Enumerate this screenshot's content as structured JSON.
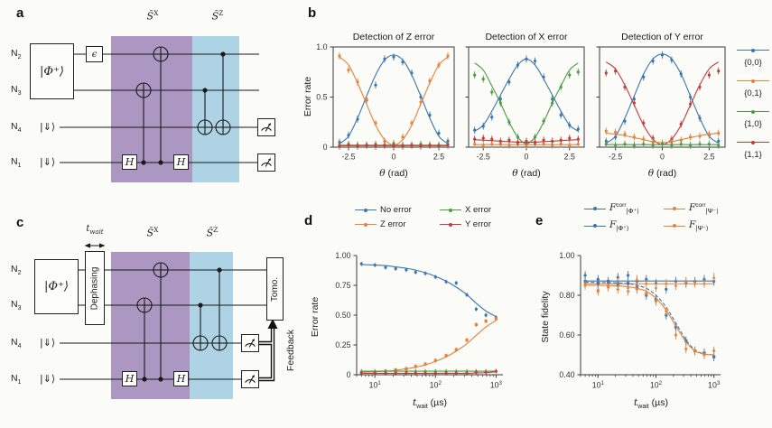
{
  "colors": {
    "blue": "#3d76ae",
    "orange": "#e5823e",
    "green": "#4f9a48",
    "red": "#c13c3c",
    "purple_shade": "#ab97c2",
    "blue_shade": "#aed3e4",
    "ink": "#222222"
  },
  "panels": {
    "a": "a",
    "b": "b",
    "c": "c",
    "d": "d",
    "e": "e"
  },
  "circuit_a": {
    "qubits": [
      {
        "base": "N",
        "sub": "2"
      },
      {
        "base": "N",
        "sub": "3"
      },
      {
        "base": "N",
        "sub": "4"
      },
      {
        "base": "N",
        "sub": "1"
      }
    ],
    "prep": "|Φ⁺⟩",
    "noise": "ϵ",
    "hadamard1": "H",
    "hadamard2": "H",
    "ket_down1": "|⇓⟩",
    "ket_down2": "|⇓⟩",
    "stab_x": {
      "base": "Ŝ",
      "sup": "X"
    },
    "stab_z": {
      "base": "Ŝ",
      "sup": "Z"
    }
  },
  "circuit_c": {
    "qubits": [
      {
        "base": "N",
        "sub": "2"
      },
      {
        "base": "N",
        "sub": "3"
      },
      {
        "base": "N",
        "sub": "4"
      },
      {
        "base": "N",
        "sub": "1"
      }
    ],
    "prep": "|Φ⁺⟩",
    "hadamard1": "H",
    "hadamard2": "H",
    "ket_down1": "|⇓⟩",
    "ket_down2": "|⇓⟩",
    "stab_x": {
      "base": "Ŝ",
      "sup": "X"
    },
    "stab_z": {
      "base": "Ŝ",
      "sup": "Z"
    },
    "wait": {
      "base": "t",
      "sub": "wait"
    },
    "dephasing": "Dephasing",
    "tomo": "Tomo.",
    "feedback": "Feedback"
  },
  "panel_b": {
    "ylabel": "Error rate",
    "xlabel_sym": "θ",
    "xlabel_rest": " (rad)"
  },
  "panel_d": {
    "ylabel": "Error rate",
    "xlabel_base": "t",
    "xlabel_sub": "wait",
    "xlabel_unit": " (µs)"
  },
  "panel_e": {
    "ylabel": "State fidelity",
    "xlabel_base": "t",
    "xlabel_sub": "wait",
    "xlabel_unit": " (µs)"
  },
  "chart_data": [
    {
      "id": "b1",
      "type": "line",
      "title": "Detection of Z error",
      "xlabel": "θ (rad)",
      "ylabel": "Error rate",
      "frame": "box",
      "xlog": false,
      "xlim": [
        -3.35,
        3.35
      ],
      "ylim": [
        0,
        1.0
      ],
      "xticks": [
        -2.5,
        0,
        2.5
      ],
      "xtick_labels": [
        "-2.5",
        "0",
        "2.5"
      ],
      "yticks": [
        0,
        0.5,
        1.0
      ],
      "ytick_labels": [
        "0",
        "0.5",
        "1.0"
      ],
      "show_ytick_labels": true,
      "err": 0.035,
      "x": [
        -3,
        -2.5,
        -2,
        -1.5,
        -1,
        -0.5,
        0,
        0.5,
        1,
        1.5,
        2,
        2.5,
        3
      ],
      "series": [
        {
          "name": "{0,0}",
          "color": "blue",
          "marker": "circle",
          "values": [
            0.05,
            0.12,
            0.28,
            0.47,
            0.62,
            0.88,
            0.9,
            0.85,
            0.74,
            0.5,
            0.32,
            0.14,
            0.06
          ],
          "line_values": [
            0.034,
            0.11,
            0.29,
            0.51,
            0.72,
            0.87,
            0.92,
            0.87,
            0.72,
            0.51,
            0.29,
            0.11,
            0.034
          ]
        },
        {
          "name": "{0,1}",
          "color": "orange",
          "marker": "circle",
          "values": [
            0.91,
            0.77,
            0.65,
            0.48,
            0.24,
            0.06,
            0.04,
            0.1,
            0.24,
            0.45,
            0.66,
            0.82,
            0.91
          ],
          "line_values": [
            0.9,
            0.82,
            0.64,
            0.43,
            0.22,
            0.075,
            0.02,
            0.075,
            0.22,
            0.43,
            0.64,
            0.82,
            0.9
          ]
        },
        {
          "name": "{1,0}",
          "color": "green",
          "marker": "circle",
          "values": [
            0.02,
            0.03,
            0.02,
            0.02,
            0.03,
            0.02,
            0.03,
            0.02,
            0.02,
            0.03,
            0.02,
            0.02,
            0.03
          ],
          "line_values": [
            0.02,
            0.02,
            0.02,
            0.02,
            0.02,
            0.02,
            0.02,
            0.02,
            0.02,
            0.02,
            0.02,
            0.02,
            0.02
          ]
        },
        {
          "name": "{1,1}",
          "color": "red",
          "marker": "circle",
          "values": [
            0.01,
            0.02,
            0.01,
            0.02,
            0.01,
            0.02,
            0.01,
            0.01,
            0.02,
            0.01,
            0.02,
            0.01,
            0.02
          ],
          "line_values": [
            0.015,
            0.015,
            0.015,
            0.015,
            0.015,
            0.015,
            0.015,
            0.015,
            0.015,
            0.015,
            0.015,
            0.015,
            0.015
          ]
        }
      ]
    },
    {
      "id": "b2",
      "type": "line",
      "title": "Detection of X error",
      "xlabel": "θ (rad)",
      "frame": "box",
      "xlog": false,
      "xlim": [
        -3.35,
        3.35
      ],
      "ylim": [
        0,
        1.0
      ],
      "xticks": [
        -2.5,
        0,
        2.5
      ],
      "xtick_labels": [
        "-2.5",
        "0",
        "2.5"
      ],
      "yticks": [
        0,
        0.5,
        1.0
      ],
      "ytick_labels": [
        "0",
        "0.5",
        "1.0"
      ],
      "show_ytick_labels": false,
      "err": 0.035,
      "x": [
        -3,
        -2.5,
        -2,
        -1.5,
        -1,
        -0.5,
        0,
        0.5,
        1,
        1.5,
        2,
        2.5,
        3
      ],
      "series": [
        {
          "name": "{0,0}",
          "color": "blue",
          "marker": "circle",
          "values": [
            0.17,
            0.21,
            0.3,
            0.48,
            0.65,
            0.82,
            0.88,
            0.86,
            0.7,
            0.48,
            0.32,
            0.22,
            0.18
          ],
          "line_values": [
            0.16,
            0.22,
            0.36,
            0.52,
            0.68,
            0.82,
            0.88,
            0.82,
            0.68,
            0.52,
            0.36,
            0.22,
            0.16
          ]
        },
        {
          "name": "{1,0}",
          "color": "green",
          "marker": "circle",
          "values": [
            0.72,
            0.68,
            0.55,
            0.44,
            0.25,
            0.1,
            0.04,
            0.1,
            0.26,
            0.44,
            0.6,
            0.72,
            0.75
          ],
          "line_values": [
            0.84,
            0.77,
            0.61,
            0.44,
            0.25,
            0.1,
            0.035,
            0.1,
            0.25,
            0.44,
            0.61,
            0.77,
            0.84
          ]
        },
        {
          "name": "{0,1}",
          "color": "orange",
          "marker": "circle",
          "values": [
            0.03,
            0.02,
            0.03,
            0.03,
            0.02,
            0.03,
            0.02,
            0.03,
            0.03,
            0.02,
            0.03,
            0.02,
            0.03
          ],
          "line_values": [
            0.025,
            0.025,
            0.025,
            0.025,
            0.025,
            0.025,
            0.025,
            0.025,
            0.025,
            0.025,
            0.025,
            0.025,
            0.025
          ]
        },
        {
          "name": "{1,1}",
          "color": "red",
          "marker": "circle",
          "values": [
            0.08,
            0.09,
            0.08,
            0.06,
            0.07,
            0.05,
            0.06,
            0.05,
            0.07,
            0.06,
            0.07,
            0.09,
            0.08
          ],
          "line_values": [
            0.075,
            0.07,
            0.065,
            0.06,
            0.055,
            0.05,
            0.05,
            0.05,
            0.055,
            0.06,
            0.065,
            0.07,
            0.075
          ]
        }
      ]
    },
    {
      "id": "b3",
      "type": "line",
      "title": "Detection of Y error",
      "xlabel": "θ (rad)",
      "frame": "box",
      "xlog": false,
      "xlim": [
        -3.35,
        3.35
      ],
      "ylim": [
        0,
        1.0
      ],
      "xticks": [
        -2.5,
        0,
        2.5
      ],
      "xtick_labels": [
        "-2.5",
        "0",
        "2.5"
      ],
      "yticks": [
        0,
        0.5,
        1.0
      ],
      "ytick_labels": [
        "0",
        "0.5",
        "1.0"
      ],
      "show_ytick_labels": false,
      "err": 0.035,
      "x": [
        -3,
        -2.5,
        -2,
        -1.5,
        -1,
        -0.5,
        0,
        0.5,
        1,
        1.5,
        2,
        2.5,
        3
      ],
      "series": [
        {
          "name": "{0,0}",
          "color": "blue",
          "marker": "circle",
          "values": [
            0.06,
            0.1,
            0.26,
            0.48,
            0.7,
            0.86,
            0.92,
            0.87,
            0.73,
            0.5,
            0.29,
            0.12,
            0.06
          ],
          "line_values": [
            0.04,
            0.11,
            0.29,
            0.51,
            0.73,
            0.88,
            0.93,
            0.88,
            0.73,
            0.51,
            0.29,
            0.11,
            0.04
          ]
        },
        {
          "name": "{1,1}",
          "color": "red",
          "marker": "circle",
          "values": [
            0.74,
            0.76,
            0.6,
            0.44,
            0.24,
            0.09,
            0.03,
            0.08,
            0.23,
            0.43,
            0.6,
            0.72,
            0.76
          ],
          "line_values": [
            0.85,
            0.78,
            0.62,
            0.42,
            0.22,
            0.08,
            0.025,
            0.08,
            0.22,
            0.42,
            0.62,
            0.78,
            0.85
          ]
        },
        {
          "name": "{0,1}",
          "color": "orange",
          "marker": "circle",
          "values": [
            0.16,
            0.15,
            0.13,
            0.1,
            0.08,
            0.05,
            0.04,
            0.05,
            0.07,
            0.1,
            0.11,
            0.13,
            0.14
          ],
          "line_values": [
            0.14,
            0.13,
            0.115,
            0.095,
            0.075,
            0.055,
            0.045,
            0.055,
            0.075,
            0.095,
            0.115,
            0.13,
            0.14
          ]
        },
        {
          "name": "{1,0}",
          "color": "green",
          "marker": "circle",
          "values": [
            0.03,
            0.02,
            0.03,
            0.02,
            0.03,
            0.02,
            0.03,
            0.02,
            0.03,
            0.02,
            0.03,
            0.03,
            0.02
          ],
          "line_values": [
            0.025,
            0.025,
            0.025,
            0.025,
            0.025,
            0.025,
            0.025,
            0.025,
            0.025,
            0.025,
            0.025,
            0.025,
            0.025
          ]
        }
      ]
    },
    {
      "id": "d",
      "type": "line",
      "title": "",
      "xlabel": "t_wait (µs)",
      "ylabel": "Error rate",
      "frame": "open",
      "xlog": true,
      "xminor": true,
      "xlim": [
        5,
        1300
      ],
      "ylim": [
        0,
        1.0
      ],
      "xticks": [
        10,
        100,
        1000
      ],
      "yticks": [
        0,
        0.25,
        0.5,
        0.75,
        1.0
      ],
      "ytick_labels": [
        "0",
        "0.25",
        "0.50",
        "0.75",
        "1.00"
      ],
      "show_ytick_labels": true,
      "err": 0.018,
      "x": [
        6,
        10,
        15,
        22,
        33,
        47,
        68,
        100,
        150,
        220,
        330,
        470,
        680,
        1000
      ],
      "series": [
        {
          "name": "No error",
          "color": "blue",
          "marker": "circle",
          "values": [
            0.93,
            0.92,
            0.9,
            0.89,
            0.88,
            0.86,
            0.85,
            0.82,
            0.78,
            0.77,
            0.67,
            0.55,
            0.5,
            0.48
          ],
          "line_values": [
            0.925,
            0.92,
            0.915,
            0.905,
            0.893,
            0.878,
            0.856,
            0.825,
            0.785,
            0.735,
            0.672,
            0.6,
            0.535,
            0.487
          ]
        },
        {
          "name": "Z error",
          "color": "orange",
          "marker": "square",
          "values": [
            0.02,
            0.02,
            0.03,
            0.04,
            0.05,
            0.07,
            0.09,
            0.12,
            0.16,
            0.21,
            0.29,
            0.42,
            0.45,
            0.47
          ],
          "line_values": [
            0.022,
            0.025,
            0.03,
            0.038,
            0.05,
            0.063,
            0.083,
            0.112,
            0.15,
            0.198,
            0.26,
            0.33,
            0.4,
            0.455
          ]
        },
        {
          "name": "X error",
          "color": "green",
          "marker": "triangle",
          "values": [
            0.03,
            0.03,
            0.03,
            0.03,
            0.03,
            0.03,
            0.03,
            0.03,
            0.03,
            0.03,
            0.03,
            0.03,
            0.03,
            0.03
          ],
          "line_values": [
            0.03,
            0.03,
            0.03,
            0.03,
            0.03,
            0.03,
            0.03,
            0.03,
            0.03,
            0.03,
            0.03,
            0.03,
            0.03,
            0.03
          ]
        },
        {
          "name": "Y error",
          "color": "red",
          "marker": "diamond",
          "values": [
            0.01,
            0.01,
            0.01,
            0.01,
            0.01,
            0.01,
            0.01,
            0.01,
            0.01,
            0.01,
            0.01,
            0.02,
            0.02,
            0.03
          ],
          "line_values": [
            0.012,
            0.012,
            0.012,
            0.012,
            0.012,
            0.012,
            0.012,
            0.012,
            0.012,
            0.012,
            0.012,
            0.015,
            0.018,
            0.025
          ]
        }
      ]
    },
    {
      "id": "e",
      "type": "line",
      "title": "",
      "xlabel": "t_wait (µs)",
      "ylabel": "State fidelity",
      "frame": "open",
      "xlog": true,
      "xminor": true,
      "xlim": [
        5,
        1300
      ],
      "ylim": [
        0.4,
        1.0
      ],
      "xticks": [
        10,
        100,
        1000
      ],
      "yticks": [
        0.4,
        0.6,
        0.8,
        1.0
      ],
      "ytick_labels": [
        "0.40",
        "0.60",
        "0.80",
        "1.00"
      ],
      "show_ytick_labels": true,
      "err": 0.022,
      "x": [
        6,
        10,
        15,
        22,
        33,
        47,
        68,
        100,
        150,
        220,
        330,
        470,
        680,
        1000
      ],
      "series": [
        {
          "name": "F_corr_phi",
          "label_base": "F",
          "label_sup": "corr",
          "label_sub": "|Φ⁺⟩",
          "color": "blue",
          "marker": "circle",
          "values": [
            0.9,
            0.88,
            0.86,
            0.89,
            0.9,
            0.87,
            0.88,
            0.86,
            0.83,
            0.87,
            0.86,
            0.87,
            0.88,
            0.87
          ],
          "line_values": [
            0.872,
            0.872,
            0.872,
            0.872,
            0.872,
            0.872,
            0.872,
            0.872,
            0.872,
            0.872,
            0.872,
            0.872,
            0.872,
            0.872
          ]
        },
        {
          "name": "F_corr_psi",
          "label_base": "F",
          "label_sup": "corr",
          "label_sub": "|Ψ⁻⟩",
          "color": "orange",
          "marker": "triangle",
          "values": [
            0.86,
            0.83,
            0.85,
            0.87,
            0.84,
            0.88,
            0.86,
            0.84,
            0.86,
            0.85,
            0.87,
            0.86,
            0.86,
            0.89
          ],
          "line_values": [
            0.858,
            0.858,
            0.858,
            0.858,
            0.858,
            0.858,
            0.858,
            0.858,
            0.858,
            0.858,
            0.858,
            0.858,
            0.858,
            0.858
          ]
        },
        {
          "name": "F_phi",
          "label_base": "F",
          "label_sup": "",
          "label_sub": "|Φ⁺⟩",
          "color": "blue",
          "marker": "square",
          "dashed": true,
          "values": [
            0.87,
            0.86,
            0.87,
            0.85,
            0.86,
            0.84,
            0.8,
            0.78,
            0.7,
            0.64,
            0.57,
            0.52,
            0.51,
            0.49
          ],
          "line_values": [
            0.865,
            0.865,
            0.864,
            0.862,
            0.858,
            0.85,
            0.835,
            0.8,
            0.74,
            0.66,
            0.575,
            0.525,
            0.505,
            0.5
          ]
        },
        {
          "name": "F_psi",
          "label_base": "F",
          "label_sup": "",
          "label_sub": "|Ψ⁻⟩",
          "color": "orange",
          "marker": "diamond",
          "values": [
            0.85,
            0.82,
            0.84,
            0.83,
            0.82,
            0.83,
            0.81,
            0.77,
            0.72,
            0.6,
            0.53,
            0.52,
            0.5,
            0.52
          ],
          "line_values": [
            0.85,
            0.85,
            0.849,
            0.847,
            0.843,
            0.835,
            0.82,
            0.785,
            0.725,
            0.645,
            0.565,
            0.52,
            0.503,
            0.5
          ]
        }
      ]
    }
  ]
}
